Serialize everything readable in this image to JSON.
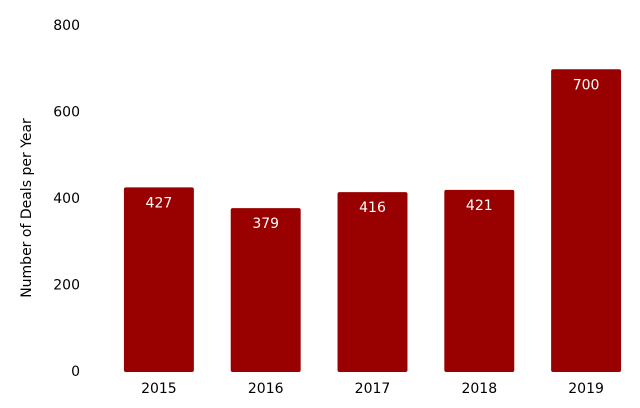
{
  "chart_data": {
    "type": "bar",
    "y_label": "Number of Deals per Year",
    "categories": [
      "2015",
      "2016",
      "2017",
      "2018",
      "2019"
    ],
    "values": [
      427,
      379,
      416,
      421,
      700
    ],
    "color": "#990000",
    "ylim": [
      0,
      800
    ],
    "yticks": [
      0,
      200,
      400,
      600,
      800
    ],
    "grid": false
  }
}
